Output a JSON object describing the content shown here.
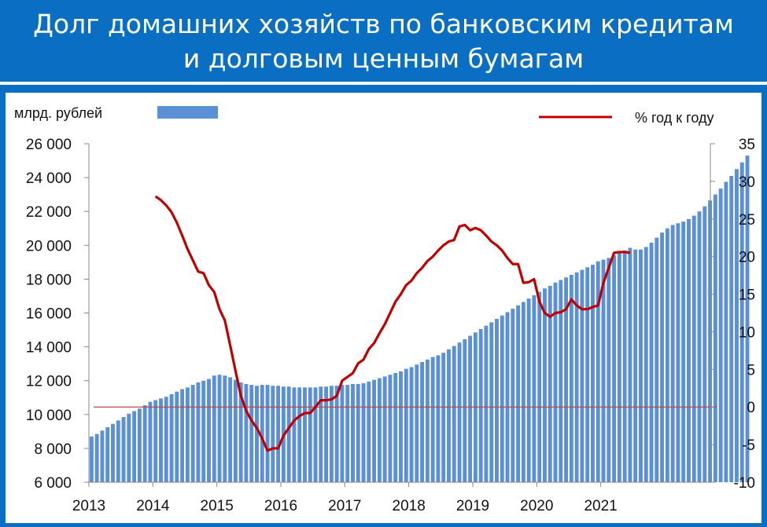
{
  "title": {
    "line1": "Долг домашних хозяйств по банковским кредитам",
    "line2": "и долговым ценным бумагам"
  },
  "colors": {
    "background": "#0a6fc2",
    "bar": "#5b8fd6",
    "line": "#c00000"
  },
  "chart_data": {
    "type": "bar",
    "title": "Долг домашних хозяйств по банковским кредитам и долговым ценным бумагам",
    "legend": {
      "bars_label": "млрд. рублей",
      "line_label": "%  год к году",
      "placement": "top"
    },
    "x_tick_labels": [
      "2013",
      "2014",
      "2015",
      "2016",
      "2017",
      "2018",
      "2019",
      "2020",
      "2021"
    ],
    "y_left": {
      "ylim": [
        6000,
        26000
      ],
      "ticks": [
        "6 000",
        "8 000",
        "10 000",
        "12 000",
        "14 000",
        "16 000",
        "18 000",
        "20 000",
        "22 000",
        "24 000",
        "26 000"
      ]
    },
    "y_right": {
      "ylim": [
        -10,
        35
      ],
      "ticks": [
        "-10",
        "-5",
        "0",
        "5",
        "10",
        "15",
        "20",
        "25",
        "30",
        "35"
      ]
    },
    "grid": false,
    "series": [
      {
        "name": "млрд. рублей",
        "type": "bar",
        "axis": "left",
        "start": "2013-01",
        "frequency": "monthly",
        "values": [
          8700,
          8850,
          9050,
          9250,
          9450,
          9650,
          9850,
          10050,
          10200,
          10350,
          10550,
          10750,
          10850,
          10950,
          11050,
          11200,
          11350,
          11500,
          11600,
          11750,
          11900,
          12000,
          12100,
          12300,
          12350,
          12300,
          12200,
          12050,
          11900,
          11800,
          11750,
          11700,
          11750,
          11750,
          11700,
          11700,
          11650,
          11650,
          11600,
          11600,
          11600,
          11600,
          11600,
          11650,
          11650,
          11700,
          11700,
          11750,
          11750,
          11800,
          11800,
          11850,
          11950,
          12050,
          12150,
          12250,
          12350,
          12450,
          12550,
          12700,
          12800,
          12950,
          13100,
          13250,
          13400,
          13500,
          13650,
          13850,
          14050,
          14250,
          14450,
          14650,
          14850,
          15050,
          15250,
          15450,
          15650,
          15850,
          16050,
          16250,
          16450,
          16650,
          16850,
          17050,
          17250,
          17450,
          17600,
          17800,
          17950,
          18100,
          18250,
          18400,
          18550,
          18700,
          18850,
          19050,
          19150,
          19250,
          19400,
          19550,
          19700,
          19850,
          19750,
          19750,
          19900,
          20150,
          20450,
          20750,
          21000,
          21200,
          21300,
          21400,
          21550,
          21750,
          22000,
          22300,
          22650,
          23000,
          23350,
          23750,
          24100,
          24500,
          24900,
          25300
        ]
      },
      {
        "name": "%  год к году",
        "type": "line",
        "axis": "right",
        "start": "2014-01",
        "frequency": "monthly",
        "values": [
          28.0,
          27.5,
          26.8,
          25.9,
          24.5,
          22.8,
          21.0,
          19.5,
          18.0,
          17.8,
          16.2,
          15.3,
          13.0,
          11.5,
          8.2,
          4.8,
          1.5,
          -0.5,
          -1.8,
          -2.8,
          -4.2,
          -5.8,
          -5.5,
          -5.5,
          -3.8,
          -2.8,
          -1.8,
          -1.2,
          -0.8,
          -0.8,
          0.0,
          0.9,
          0.9,
          1.0,
          1.5,
          3.5,
          4.0,
          4.5,
          5.8,
          6.3,
          7.7,
          8.5,
          9.8,
          11.0,
          12.5,
          14.0,
          15.0,
          16.2,
          16.8,
          17.8,
          18.5,
          19.4,
          20.0,
          20.8,
          21.5,
          22.0,
          22.2,
          24.0,
          24.2,
          23.5,
          23.8,
          23.5,
          22.8,
          22.0,
          21.5,
          20.8,
          19.8,
          19.0,
          19.0,
          16.5,
          16.6,
          17.0,
          14.0,
          12.5,
          12.0,
          12.5,
          12.6,
          13.0,
          14.3,
          13.5,
          13.0,
          13.0,
          13.3,
          13.5,
          16.5,
          18.5,
          20.5,
          20.6,
          20.6,
          20.5
        ]
      }
    ]
  }
}
